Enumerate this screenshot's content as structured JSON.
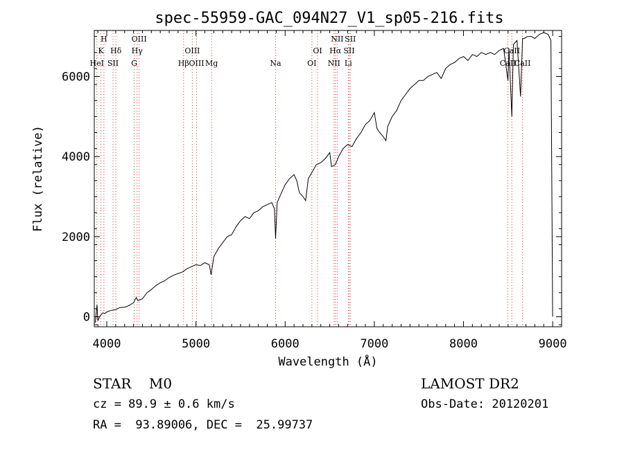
{
  "chart_data": {
    "type": "line",
    "title": "spec-55959-GAC_094N27_V1_sp05-216.fits",
    "xlabel": "Wavelength (Å)",
    "ylabel": "Flux (relative)",
    "xlim": [
      3860,
      9100
    ],
    "ylim": [
      -250,
      7150
    ],
    "x_ticks": [
      4000,
      5000,
      6000,
      7000,
      8000,
      9000
    ],
    "y_ticks": [
      0,
      2000,
      4000,
      6000
    ],
    "grid": false,
    "line_color": "#000000",
    "marker_color": "#e03030",
    "series": [
      {
        "x": [
          3870,
          3890,
          3900,
          3920,
          3940,
          3960,
          3980,
          4000,
          4050,
          4100,
          4150,
          4200,
          4250,
          4300,
          4330,
          4350,
          4400,
          4450,
          4500,
          4550,
          4600,
          4650,
          4700,
          4750,
          4800,
          4850,
          4900,
          4950,
          5000,
          5050,
          5100,
          5150,
          5170,
          5200,
          5250,
          5300,
          5350,
          5400,
          5450,
          5500,
          5550,
          5600,
          5650,
          5700,
          5750,
          5800,
          5850,
          5880,
          5893,
          5910,
          5950,
          6000,
          6050,
          6100,
          6130,
          6160,
          6200,
          6230,
          6260,
          6300,
          6350,
          6400,
          6450,
          6500,
          6520,
          6563,
          6600,
          6650,
          6700,
          6750,
          6800,
          6850,
          6900,
          6950,
          7000,
          7030,
          7060,
          7100,
          7130,
          7150,
          7200,
          7250,
          7300,
          7350,
          7400,
          7450,
          7500,
          7550,
          7600,
          7650,
          7700,
          7750,
          7800,
          7850,
          7900,
          7950,
          8000,
          8050,
          8100,
          8150,
          8200,
          8250,
          8300,
          8350,
          8400,
          8450,
          8498,
          8510,
          8542,
          8560,
          8600,
          8640,
          8662,
          8680,
          8720,
          8760,
          8800,
          8850,
          8900,
          8950,
          8980,
          9000
        ],
        "y": [
          -150,
          300,
          -100,
          0,
          60,
          100,
          80,
          120,
          160,
          180,
          230,
          240,
          280,
          350,
          480,
          400,
          450,
          600,
          680,
          780,
          850,
          900,
          980,
          1040,
          1080,
          1120,
          1200,
          1250,
          1300,
          1280,
          1350,
          1300,
          1050,
          1500,
          1700,
          1850,
          2000,
          2050,
          2250,
          2400,
          2500,
          2450,
          2600,
          2650,
          2750,
          2800,
          2850,
          2700,
          1950,
          2850,
          3050,
          3300,
          3450,
          3550,
          3400,
          3100,
          3000,
          2900,
          3450,
          3600,
          3800,
          3850,
          3950,
          4100,
          3750,
          3800,
          4000,
          4200,
          4300,
          4250,
          4450,
          4600,
          4800,
          4900,
          5100,
          4700,
          4600,
          4500,
          4400,
          4750,
          5000,
          5150,
          5400,
          5550,
          5700,
          5800,
          5900,
          5900,
          6000,
          6050,
          6100,
          5950,
          6200,
          6300,
          6350,
          6450,
          6500,
          6400,
          6550,
          6500,
          6600,
          6550,
          6600,
          6550,
          6650,
          6700,
          5900,
          6700,
          5000,
          6800,
          6900,
          5500,
          6950,
          6950,
          7000,
          7000,
          6950,
          7050,
          7100,
          7050,
          6900,
          0
        ]
      }
    ],
    "lines": [
      {
        "label": "HeI",
        "x": 3889
      },
      {
        "label": "K",
        "x": 3934
      },
      {
        "label": "H",
        "x": 3968
      },
      {
        "label": "SII",
        "x": 4070
      },
      {
        "label": "Hδ",
        "x": 4102
      },
      {
        "label": "Hγ",
        "x": 4340
      },
      {
        "label": "OIII",
        "x": 4363
      },
      {
        "label": "G",
        "x": 4307
      },
      {
        "label": "Hβ",
        "x": 4861
      },
      {
        "label": "OIII",
        "x": 4959
      },
      {
        "label": "OIII",
        "x": 5007
      },
      {
        "label": "Mg",
        "x": 5175
      },
      {
        "label": "Na",
        "x": 5893
      },
      {
        "label": "OI",
        "x": 6300
      },
      {
        "label": "OI",
        "x": 6364
      },
      {
        "label": "NII",
        "x": 6548
      },
      {
        "label": "Hα",
        "x": 6563
      },
      {
        "label": "NII",
        "x": 6584
      },
      {
        "label": "SII",
        "x": 6717
      },
      {
        "label": "SII",
        "x": 6731
      },
      {
        "label": "Li",
        "x": 6708
      },
      {
        "label": "CaII",
        "x": 8498
      },
      {
        "label": "CaII",
        "x": 8542
      },
      {
        "label": "CaII",
        "x": 8662
      }
    ]
  },
  "footer": {
    "object_type": "STAR    M0",
    "survey": "LAMOST DR2",
    "cz": "cz = 89.9 ± 0.6 km/s",
    "obs_date": "Obs-Date: 20120201",
    "coords": "RA =  93.89006, DEC =  25.99737"
  }
}
